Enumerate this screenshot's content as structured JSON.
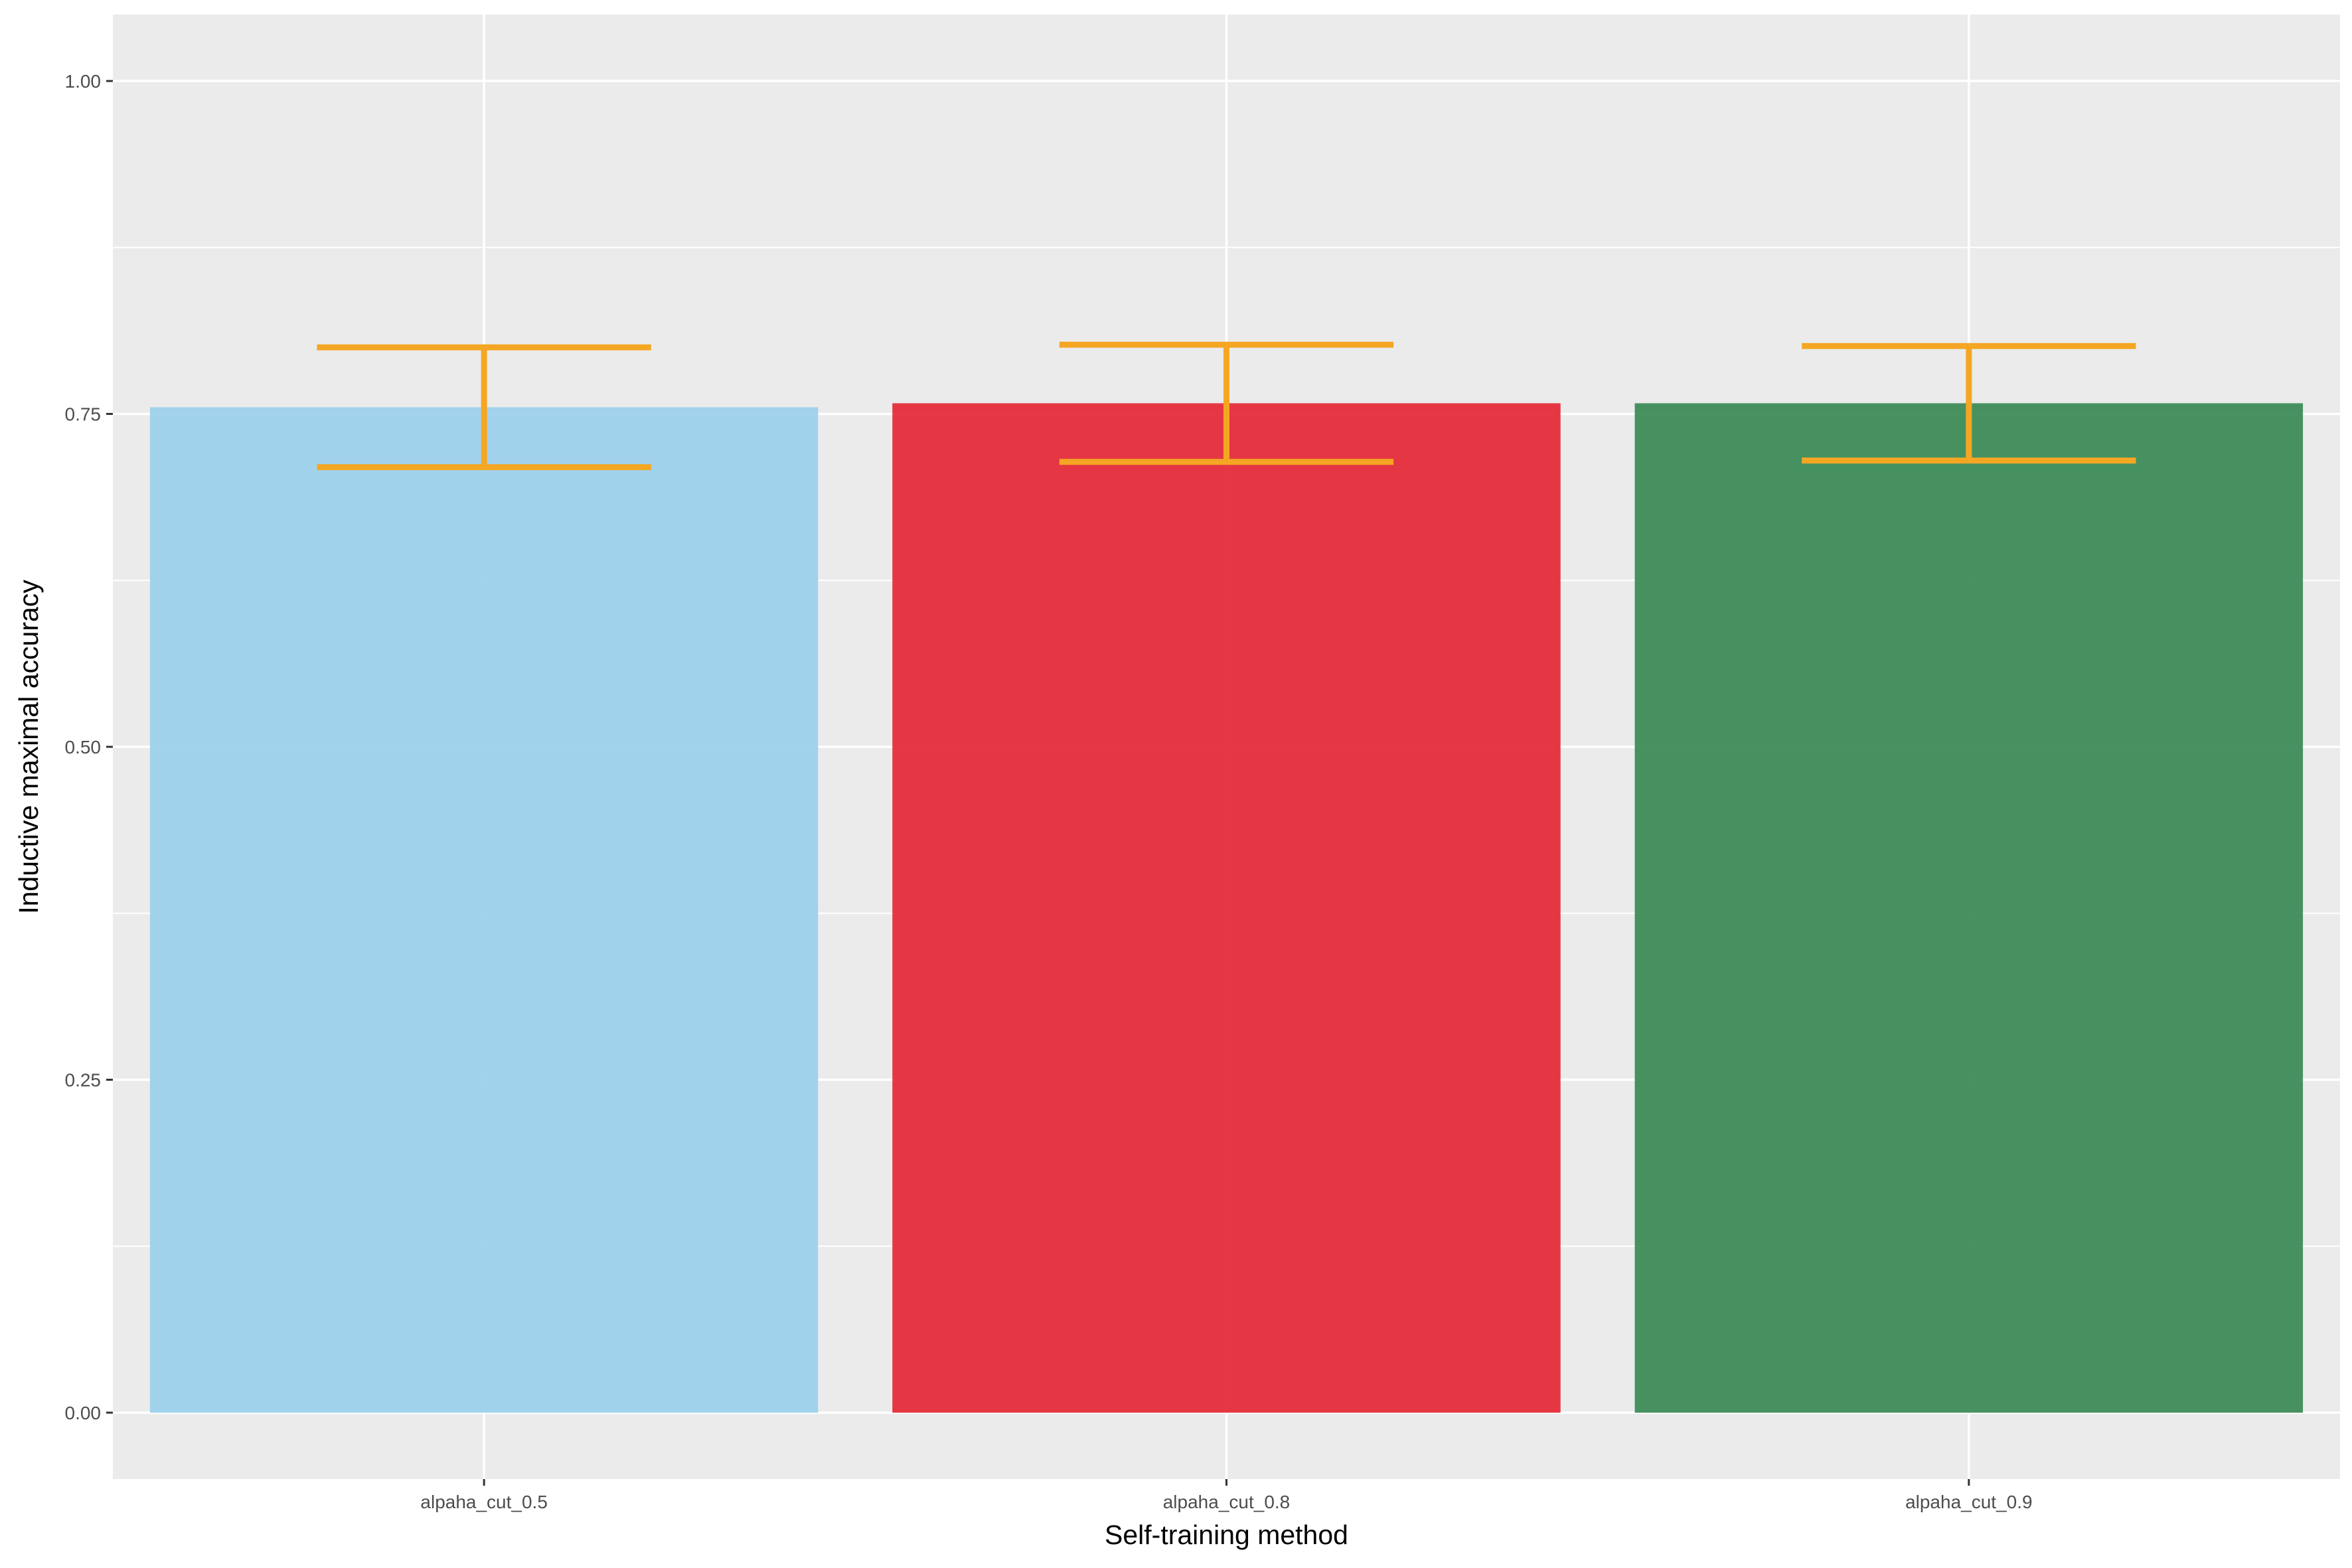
{
  "chart_data": {
    "type": "bar",
    "title": "",
    "xlabel": "Self-training method",
    "ylabel": "Inductive maximal accuracy",
    "categories": [
      "alpaha_cut_0.5",
      "alpaha_cut_0.8",
      "alpaha_cut_0.9"
    ],
    "values": [
      0.755,
      0.758,
      0.758
    ],
    "error_low": [
      0.71,
      0.714,
      0.715
    ],
    "error_high": [
      0.8,
      0.802,
      0.801
    ],
    "bar_colors": [
      "#9dd1ec",
      "#e52d3a",
      "#3e8c5a"
    ],
    "error_color": "#f5a623",
    "ylim": [
      -0.05,
      1.05
    ],
    "yticks": [
      0.0,
      0.25,
      0.5,
      0.75,
      1.0
    ],
    "ytick_labels": [
      "0.00",
      "0.25",
      "0.50",
      "0.75",
      "1.00"
    ],
    "grid": true,
    "panel_background": "#ebebeb",
    "grid_color": "#ffffff",
    "legend": "none"
  }
}
